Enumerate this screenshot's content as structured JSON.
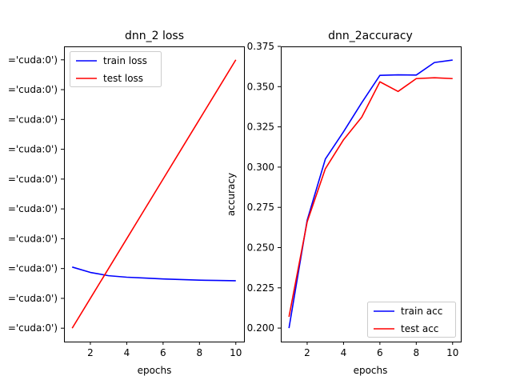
{
  "chart_data": [
    {
      "type": "line",
      "title": "dnn_2 loss",
      "xlabel": "epochs",
      "ylabel": "",
      "x": [
        1,
        2,
        3,
        4,
        5,
        6,
        7,
        8,
        9,
        10
      ],
      "xlim": [
        0.55,
        10.45
      ],
      "xticks": [
        2,
        4,
        6,
        8,
        10
      ],
      "ytick_labels": [
        "='cuda:0')",
        "='cuda:0')",
        "='cuda:0')",
        "='cuda:0')",
        "='cuda:0')",
        "='cuda:0')",
        "='cuda:0')",
        "='cuda:0')",
        "='cuda:0')",
        "='cuda:0')"
      ],
      "ylim": [
        -0.45,
        9.45
      ],
      "series": [
        {
          "name": "train loss",
          "color": "#0000ff",
          "values": [
            2.05,
            1.87,
            1.76,
            1.71,
            1.68,
            1.65,
            1.63,
            1.61,
            1.6,
            1.59
          ]
        },
        {
          "name": "test loss",
          "color": "#ff0000",
          "values": [
            0.0,
            1.0,
            2.0,
            3.0,
            4.0,
            5.0,
            6.0,
            7.0,
            8.0,
            9.0
          ]
        }
      ],
      "legend": "top-left",
      "grid": false
    },
    {
      "type": "line",
      "title": "dnn_2accuracy",
      "xlabel": "epochs",
      "ylabel": "accuracy",
      "x": [
        1,
        2,
        3,
        4,
        5,
        6,
        7,
        8,
        9,
        10
      ],
      "xlim": [
        0.55,
        10.45
      ],
      "xticks": [
        2,
        4,
        6,
        8,
        10
      ],
      "ylim": [
        0.1916,
        0.375
      ],
      "yticks": [
        0.2,
        0.225,
        0.25,
        0.275,
        0.3,
        0.325,
        0.35,
        0.375
      ],
      "ytick_labels": [
        "0.200",
        "0.225",
        "0.250",
        "0.275",
        "0.300",
        "0.325",
        "0.350",
        "0.375"
      ],
      "series": [
        {
          "name": "train acc",
          "color": "#0000ff",
          "values": [
            0.2,
            0.267,
            0.305,
            0.322,
            0.34,
            0.357,
            0.3573,
            0.3572,
            0.365,
            0.3665
          ]
        },
        {
          "name": "test acc",
          "color": "#ff0000",
          "values": [
            0.207,
            0.266,
            0.299,
            0.317,
            0.331,
            0.353,
            0.347,
            0.355,
            0.3555,
            0.355
          ]
        }
      ],
      "legend": "bottom-right",
      "grid": false
    }
  ]
}
